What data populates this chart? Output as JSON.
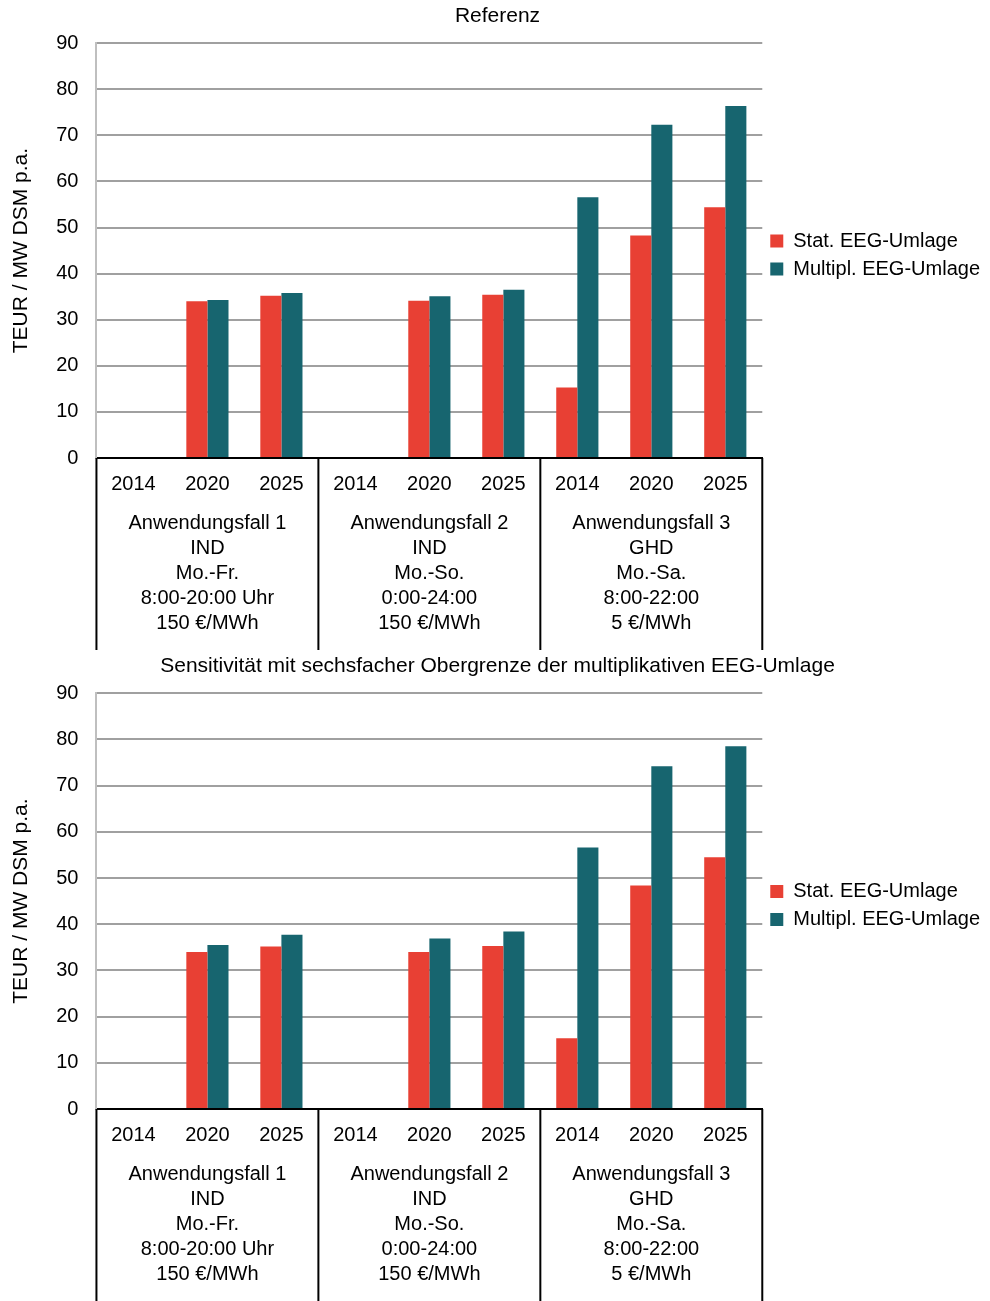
{
  "chart_data": [
    {
      "type": "bar",
      "title": "Referenz",
      "ylabel": "TEUR / MW DSM p.a.",
      "categories": [
        "2014",
        "2020",
        "2025",
        "2014",
        "2020",
        "2025",
        "2014",
        "2020",
        "2025"
      ],
      "series": [
        {
          "name": "Stat. EEG-Umlage",
          "color": "#e84034",
          "values": [
            null,
            34.0,
            35.2,
            null,
            34.1,
            35.4,
            15.3,
            48.3,
            54.4
          ]
        },
        {
          "name": "Multipl. EEG-Umlage",
          "color": "#17656f",
          "values": [
            null,
            34.3,
            35.8,
            null,
            35.1,
            36.5,
            56.6,
            72.3,
            76.4
          ]
        }
      ],
      "ylim": [
        0,
        90
      ],
      "yticks": [
        0,
        10,
        20,
        30,
        40,
        50,
        60,
        70,
        80,
        90
      ],
      "grid": "y",
      "legend": "right",
      "annotations": [
        "Anwendungsfall 1\nIND\nMo.-Fr.\n8:00-20:00 Uhr\n150 €/MWh",
        "Anwendungsfall 2\nIND\nMo.-So.\n0:00-24:00\n150 €/MWh",
        "Anwendungsfall 3\nGHD\nMo.-Sa.\n8:00-22:00\n5 €/MWh"
      ]
    },
    {
      "type": "bar",
      "title": "Sensitivität mit sechsfacher Obergrenze der multiplikativen EEG-Umlage",
      "ylabel": "TEUR / MW DSM p.a.",
      "categories": [
        "2014",
        "2020",
        "2025",
        "2014",
        "2020",
        "2025",
        "2014",
        "2020",
        "2025"
      ],
      "series": [
        {
          "name": "Stat. EEG-Umlage",
          "color": "#e84034",
          "values": [
            null,
            34.0,
            35.2,
            null,
            34.0,
            35.3,
            15.3,
            48.4,
            54.5
          ]
        },
        {
          "name": "Multipl. EEG-Umlage",
          "color": "#17656f",
          "values": [
            null,
            35.5,
            37.7,
            null,
            36.9,
            38.4,
            56.6,
            74.2,
            78.5
          ]
        }
      ],
      "ylim": [
        0,
        90
      ],
      "yticks": [
        0,
        10,
        20,
        30,
        40,
        50,
        60,
        70,
        80,
        90
      ],
      "grid": "y",
      "legend": "right",
      "annotations": [
        "Anwendungsfall 1\nIND\nMo.-Fr.\n8:00-20:00 Uhr\n150 €/MWh",
        "Anwendungsfall 2\nIND\nMo.-So.\n0:00-24:00\n150 €/MWh",
        "Anwendungsfall 3\nGHD\nMo.-Sa.\n8:00-22:00\n5 €/MWh"
      ]
    }
  ]
}
